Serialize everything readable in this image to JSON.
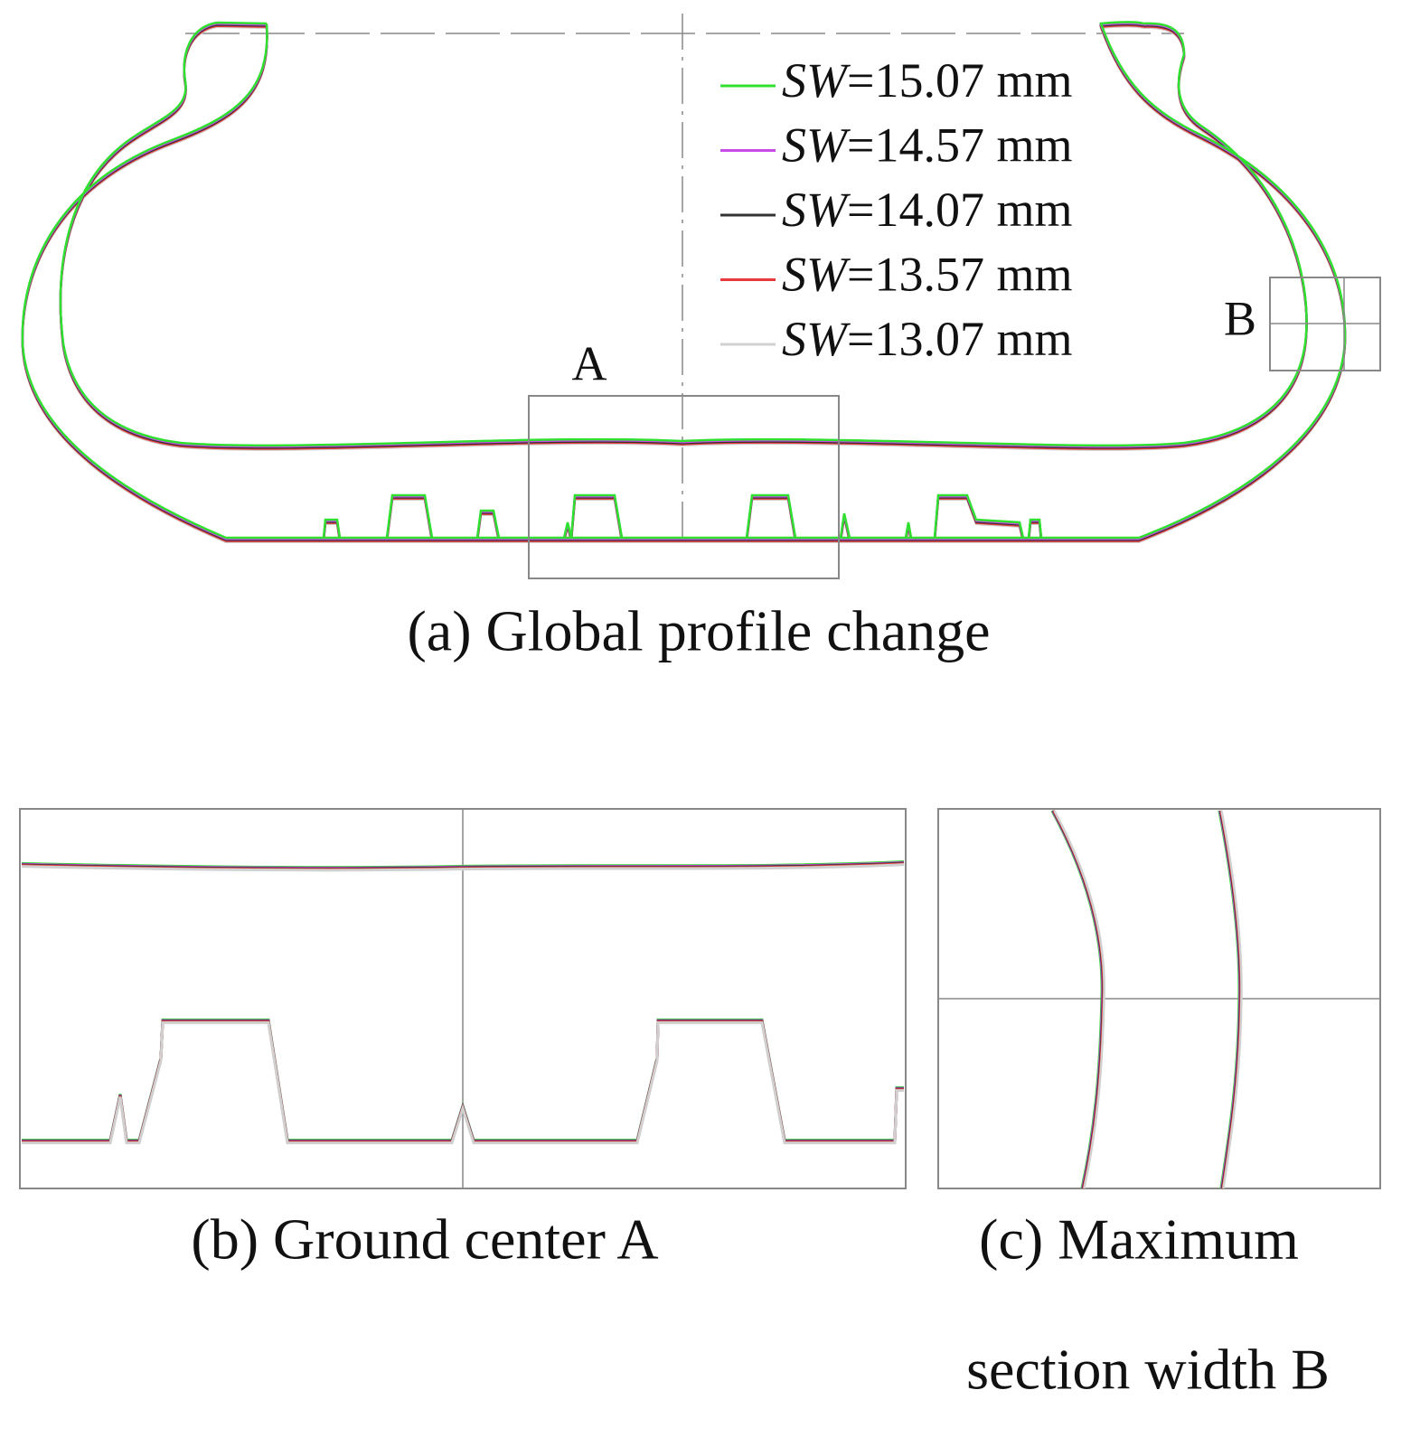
{
  "figure": {
    "panel_a": {
      "caption": "(a) Global profile change",
      "region_labels": [
        "A",
        "B"
      ],
      "legend": [
        {
          "symbol": "SW",
          "text": "=15.07 mm",
          "color": "#2fe02f"
        },
        {
          "symbol": "SW",
          "text": "=14.57 mm",
          "color": "#c94be8"
        },
        {
          "symbol": "SW",
          "text": "=14.07 mm",
          "color": "#333333"
        },
        {
          "symbol": "SW",
          "text": "=13.57 mm",
          "color": "#e83a3a"
        },
        {
          "symbol": "SW",
          "text": "=13.07 mm",
          "color": "#d0d0d0"
        }
      ]
    },
    "panel_b": {
      "caption": "(b) Ground center A"
    },
    "panel_c": {
      "caption_lines": [
        "(c) Maximum",
        "section width B"
      ]
    }
  }
}
